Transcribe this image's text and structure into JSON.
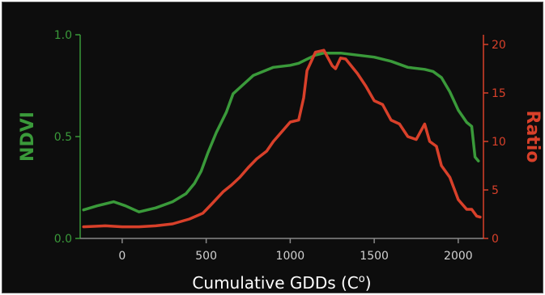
{
  "chart_data": {
    "type": "line",
    "title": "",
    "xlabel": "Cumulative GDDs (C°)",
    "xlabel_main": "Cumulative GDDs (C",
    "xlabel_sup": "o",
    "xlabel_close": ")",
    "xlim": [
      -250,
      2150
    ],
    "xticks": [
      "0",
      "500",
      "1000",
      "1500",
      "2000"
    ],
    "xtick_values": [
      0,
      500,
      1000,
      1500,
      2000
    ],
    "y_left": {
      "label": "NDVI",
      "lim": [
        0.0,
        1.0
      ],
      "ticks": [
        "0.0",
        "0.5",
        "1.0"
      ],
      "tick_values": [
        0.0,
        0.5,
        1.0
      ],
      "color": "#3a9a3a"
    },
    "y_right": {
      "label": "Ratio",
      "lim": [
        0,
        21
      ],
      "ticks": [
        "0",
        "5",
        "10",
        "15",
        "20"
      ],
      "tick_values": [
        0,
        5,
        10,
        15,
        20
      ],
      "color": "#d8402a"
    },
    "series": [
      {
        "axis": "left",
        "color": "#3a9a3a",
        "x": [
          -230,
          -150,
          -50,
          20,
          100,
          200,
          300,
          380,
          430,
          470,
          510,
          560,
          620,
          660,
          700,
          780,
          900,
          1000,
          1050,
          1100,
          1150,
          1200,
          1300,
          1400,
          1500,
          1600,
          1700,
          1800,
          1850,
          1900,
          1950,
          2000,
          2050,
          2080,
          2100,
          2120
        ],
        "values": [
          0.14,
          0.16,
          0.18,
          0.16,
          0.13,
          0.15,
          0.18,
          0.22,
          0.27,
          0.33,
          0.42,
          0.52,
          0.62,
          0.71,
          0.74,
          0.8,
          0.84,
          0.85,
          0.86,
          0.88,
          0.9,
          0.91,
          0.91,
          0.9,
          0.89,
          0.87,
          0.84,
          0.83,
          0.82,
          0.79,
          0.72,
          0.63,
          0.57,
          0.55,
          0.4,
          0.38
        ]
      },
      {
        "axis": "right",
        "color": "#d8402a",
        "x": [
          -230,
          -100,
          0,
          100,
          200,
          300,
          400,
          480,
          530,
          600,
          650,
          700,
          750,
          800,
          860,
          900,
          950,
          1000,
          1050,
          1080,
          1100,
          1150,
          1200,
          1250,
          1270,
          1300,
          1330,
          1400,
          1450,
          1500,
          1550,
          1600,
          1650,
          1700,
          1750,
          1800,
          1830,
          1870,
          1900,
          1950,
          2000,
          2050,
          2080,
          2110,
          2130
        ],
        "values": [
          1.2,
          1.3,
          1.2,
          1.2,
          1.3,
          1.5,
          2.0,
          2.6,
          3.5,
          4.8,
          5.5,
          6.3,
          7.3,
          8.2,
          9.0,
          10.0,
          11.0,
          12.0,
          12.2,
          14.5,
          17.3,
          19.2,
          19.4,
          17.8,
          17.5,
          18.6,
          18.5,
          17.0,
          15.7,
          14.2,
          13.8,
          12.2,
          11.8,
          10.5,
          10.2,
          11.8,
          10.0,
          9.5,
          7.5,
          6.3,
          4.0,
          3.0,
          3.0,
          2.3,
          2.2
        ]
      }
    ]
  }
}
